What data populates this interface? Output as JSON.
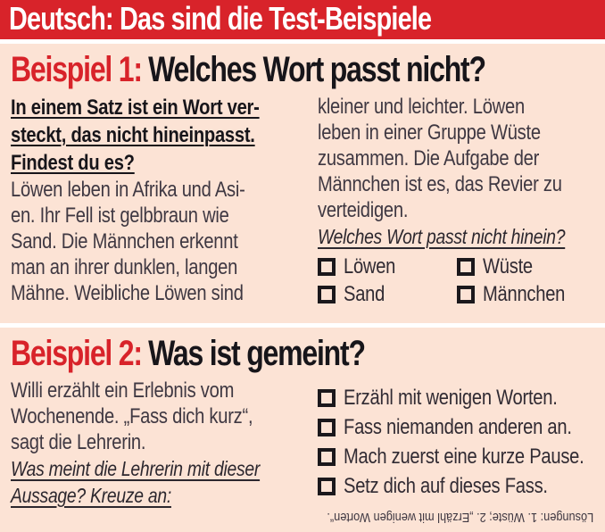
{
  "colors": {
    "brand_red": "#d8232a",
    "panel_pink": "#fce3d5",
    "headline_black": "#17151a",
    "body_text": "#3f3842",
    "banner_text": "#ffffff"
  },
  "banner": {
    "title": "Deutsch: Das sind die Test-Beispiele"
  },
  "example1": {
    "label": "Beispiel 1:",
    "title": "Welches Wort passt nicht?",
    "intro": "In einem Satz ist ein Wort ver-\nsteckt, das nicht hineinpasst.\nFindest du es?",
    "body_left": "Löwen leben in Afrika und Asi-\nen. Ihr Fell ist gelbbraun wie\nSand. Die Männchen erkennt\nman an ihrer dunklen, langen\nMähne. Weibliche Löwen sind",
    "body_right": "kleiner und leichter. Löwen\nleben in einer Gruppe Wüste\nzusammen. Die Aufgabe der\nMännchen ist es, das Revier zu\nverteidigen.",
    "question": "Welches Wort passt nicht hinein?",
    "options": [
      {
        "label": "Löwen"
      },
      {
        "label": "Wüste"
      },
      {
        "label": "Sand"
      },
      {
        "label": "Männchen"
      }
    ]
  },
  "example2": {
    "label": "Beispiel 2:",
    "title": "Was ist gemeint?",
    "body": "Willi erzählt ein Erlebnis vom\nWochenende. „Fass dich kurz“,\nsagt die Lehrerin.",
    "question": "Was meint die Lehrerin mit dieser\nAussage? Kreuze an:",
    "options": [
      {
        "label": "Erzähl mit wenigen Worten."
      },
      {
        "label": "Fass niemanden anderen an."
      },
      {
        "label": "Mach zuerst eine kurze Pause."
      },
      {
        "label": "Setz dich auf dieses Fass."
      }
    ],
    "solutions": "Lösungen: 1. Wüste; 2. „Erzähl mit wenigen Worten“."
  }
}
